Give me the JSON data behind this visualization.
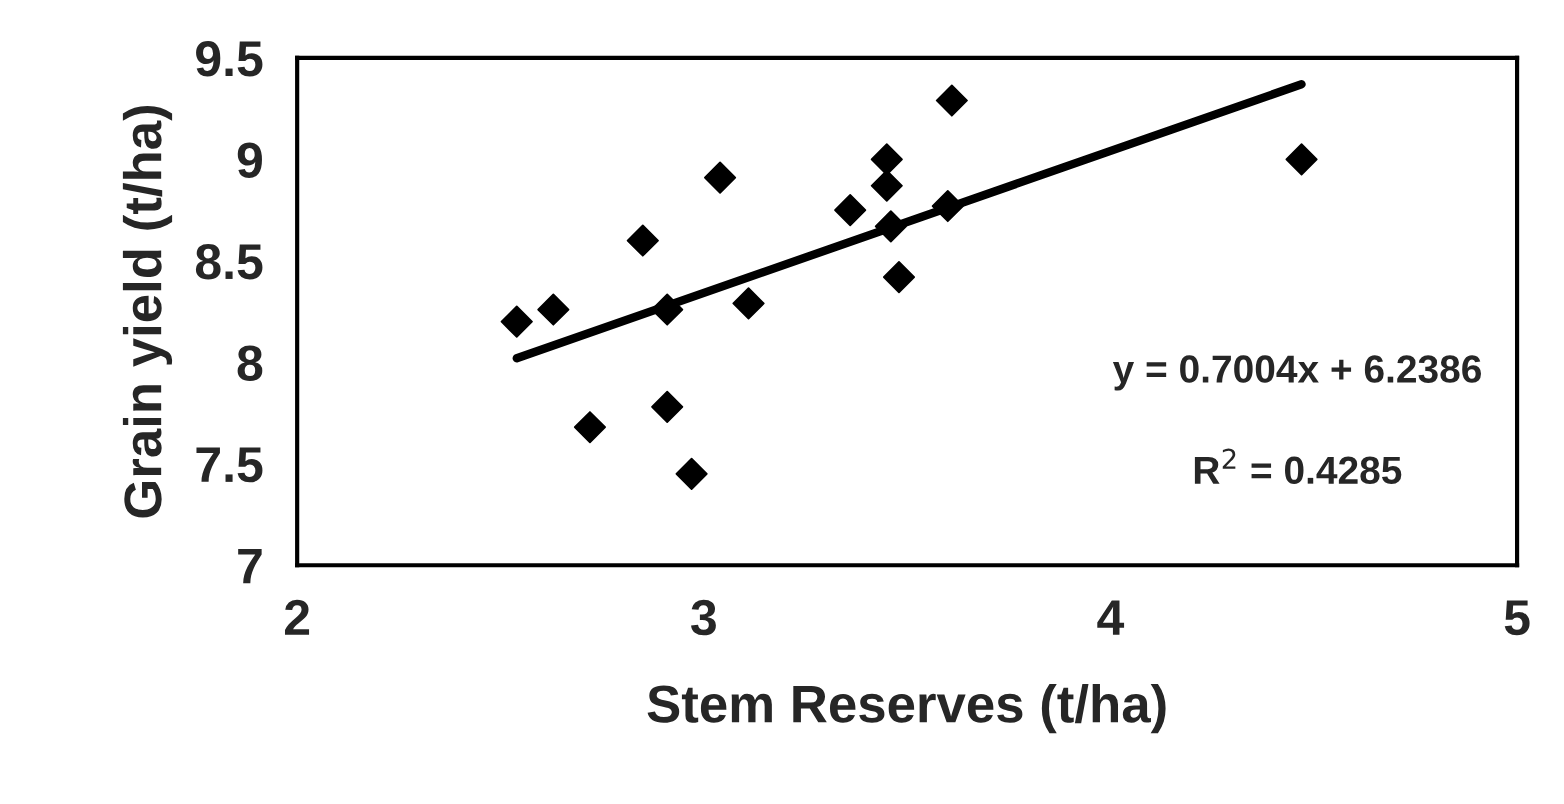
{
  "chart_data": {
    "type": "scatter",
    "xlabel": "Stem Reserves (t/ha)",
    "ylabel": "Grain yield (t/ha)",
    "xlim": [
      2,
      5
    ],
    "xticks": [
      2,
      3,
      4,
      5
    ],
    "ylim": [
      7,
      9.5
    ],
    "yticks": [
      7,
      7.5,
      8,
      8.5,
      9,
      9.5
    ],
    "grid": false,
    "legend": false,
    "marker": "diamond",
    "series": [
      {
        "color": "#000000",
        "x": [
          2.54,
          2.63,
          2.72,
          2.85,
          2.91,
          2.91,
          2.97,
          3.04,
          3.11,
          3.36,
          3.45,
          3.45,
          3.46,
          3.48,
          3.6,
          3.61,
          4.47
        ],
        "values": [
          8.2,
          8.26,
          7.68,
          8.6,
          8.26,
          7.78,
          7.45,
          8.91,
          8.29,
          8.75,
          9.0,
          8.87,
          8.67,
          8.42,
          8.77,
          9.29,
          9.0
        ]
      },
      {
        "type": "line",
        "color": "#000000",
        "marker": "none",
        "line_style": "solid",
        "x": [
          2.54,
          4.47
        ],
        "values": [
          8.02,
          9.37
        ]
      }
    ],
    "annotations": [
      "y = 0.7004x + 6.2386",
      "R$^{2}$ = 0.4285"
    ]
  }
}
